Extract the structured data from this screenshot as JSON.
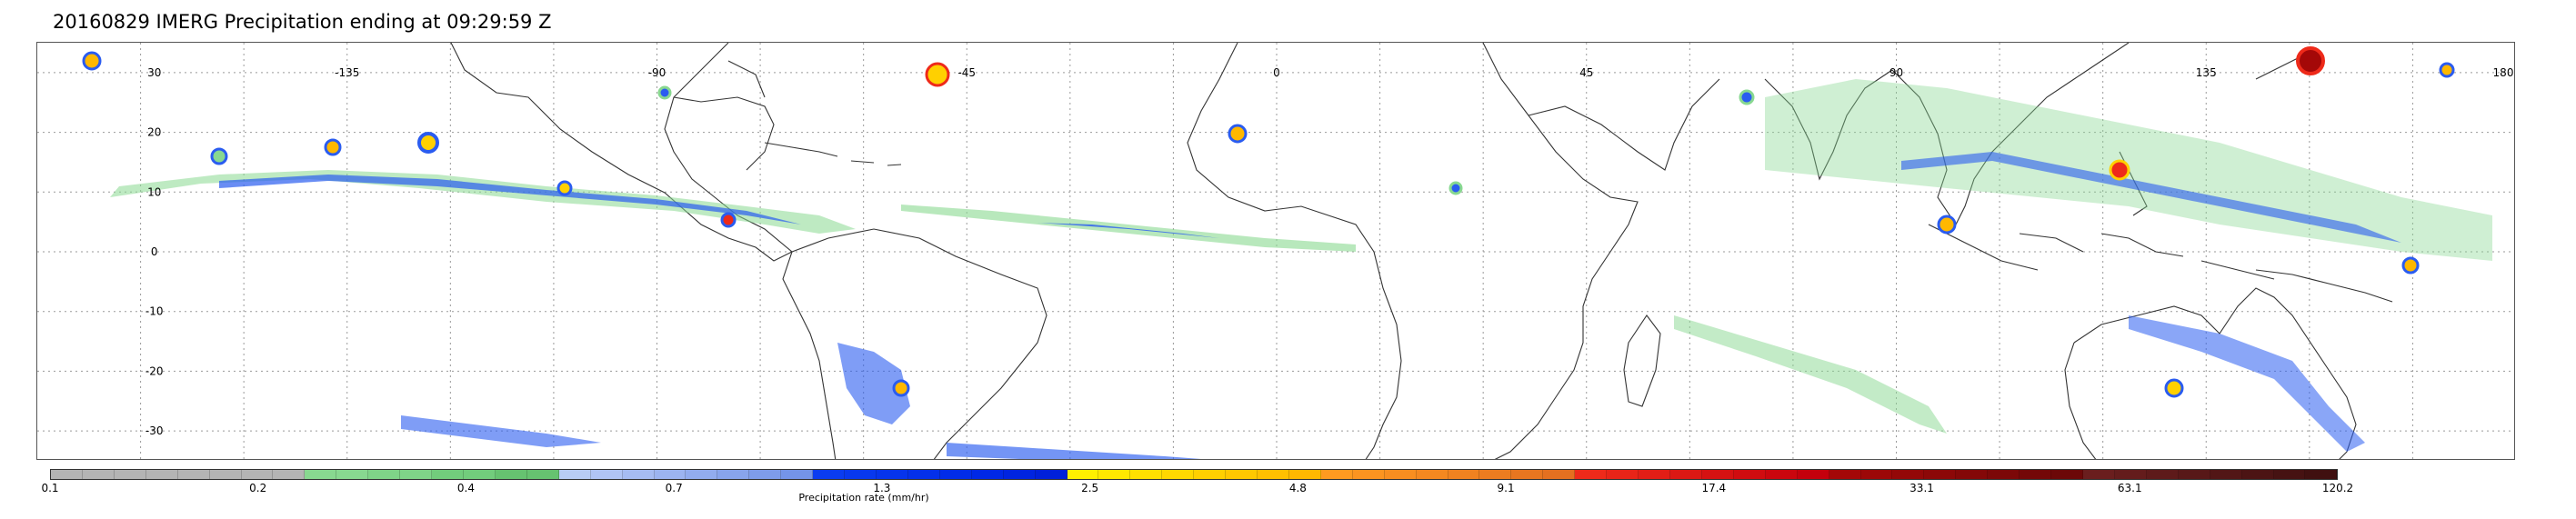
{
  "title": "20160829 IMERG Precipitation ending at 09:29:59 Z",
  "map": {
    "projection": "equirectangular",
    "lon_range": [
      -180,
      180
    ],
    "lat_range": [
      -35,
      35
    ],
    "grid": "dotted",
    "lat_ticks": [
      "30",
      "20",
      "10",
      "0",
      "-10",
      "-20",
      "-30"
    ],
    "lon_ticks": [
      "-135",
      "-90",
      "-45",
      "0",
      "45",
      "90",
      "135",
      "180"
    ]
  },
  "colorbar": {
    "label": "Precipitation rate (mm/hr)",
    "tick_labels": [
      "0.1",
      "0.2",
      "0.4",
      "0.7",
      "1.3",
      "2.5",
      "4.8",
      "9.1",
      "17.4",
      "33.1",
      "63.1",
      "120.2"
    ],
    "colors": [
      "#b4b4b4",
      "#b4b4b4",
      "#b4b4b4",
      "#b4b4b4",
      "#b4b4b4",
      "#b4b4b4",
      "#b4b4b4",
      "#b4b4b4",
      "#88d890",
      "#88d890",
      "#7fd488",
      "#7fd488",
      "#72cc7c",
      "#72cc7c",
      "#66c270",
      "#66c270",
      "#b8ccf4",
      "#b0c4f4",
      "#a6bcf2",
      "#9cb4f0",
      "#92acee",
      "#88a4ec",
      "#7e9cea",
      "#7494e8",
      "#0a3cf0",
      "#0838ee",
      "#0634ec",
      "#0430ea",
      "#022ce8",
      "#0028e6",
      "#0024e0",
      "#0020da",
      "#fff000",
      "#ffe800",
      "#ffe000",
      "#ffd800",
      "#ffd000",
      "#ffc800",
      "#ffc000",
      "#ffb800",
      "#ff9a20",
      "#fc9420",
      "#f88e20",
      "#f48820",
      "#f08220",
      "#ec7c20",
      "#e87620",
      "#e47020",
      "#ee2a1a",
      "#e82418",
      "#e21e16",
      "#dc1814",
      "#d61212",
      "#d00c10",
      "#ca060e",
      "#c4000c",
      "#a40808",
      "#9c0808",
      "#940808",
      "#8c0808",
      "#840808",
      "#7c0808",
      "#740808",
      "#6c0808",
      "#6a1e1e",
      "#641c1c",
      "#5e1a1a",
      "#581818",
      "#521616",
      "#4c1414",
      "#461212",
      "#401010"
    ]
  }
}
